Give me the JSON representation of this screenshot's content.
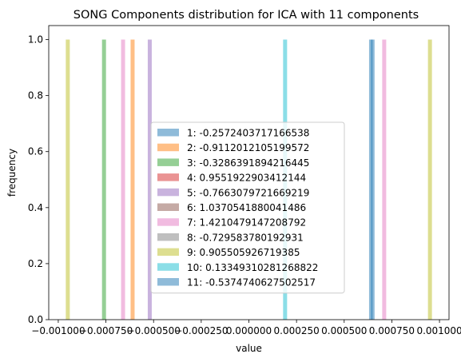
{
  "chart_data": {
    "type": "bar",
    "title": "SONG Components distribution for ICA with 11 components",
    "xlabel": "value",
    "ylabel": "frequency",
    "xlim": [
      -0.00105,
      0.00105
    ],
    "ylim": [
      0,
      1.05
    ],
    "x_ticks": [
      -0.001,
      -0.00075,
      -0.0005,
      -0.00025,
      0.0,
      0.00025,
      0.0005,
      0.00075,
      0.001
    ],
    "x_tick_labels": [
      "−0.001000",
      "−0.000750",
      "−0.000500",
      "−0.000250",
      "0.000000",
      "0.000250",
      "0.000500",
      "0.000750",
      "0.001000"
    ],
    "y_ticks": [
      0.0,
      0.2,
      0.4,
      0.6,
      0.8,
      1.0
    ],
    "y_tick_labels": [
      "0.0",
      "0.2",
      "0.4",
      "0.6",
      "0.8",
      "1.0"
    ],
    "grid": false,
    "legend_position": "lower-center",
    "series": [
      {
        "name": "1: -0.2572403717166538",
        "color": "#1f77b4",
        "x": 0.00064,
        "value": 1.0
      },
      {
        "name": "2: -0.9112012105199572",
        "color": "#ff7f0e",
        "x": -0.00061,
        "value": 1.0
      },
      {
        "name": "3: -0.3286391894216445",
        "color": "#2ca02c",
        "x": -0.00076,
        "value": 1.0
      },
      {
        "name": "4: 0.9551922903412144",
        "color": "#d62728",
        "x": null,
        "value": 0
      },
      {
        "name": "5: -0.7663079721669219",
        "color": "#9467bd",
        "x": -0.00052,
        "value": 1.0
      },
      {
        "name": "6: 1.0370541880041486",
        "color": "#8c564b",
        "x": null,
        "value": 0
      },
      {
        "name": "7: 1.4210479147208792",
        "color": "#e377c2",
        "x": -0.00066,
        "value": 1.0,
        "extra_x": 0.00071
      },
      {
        "name": "8: -0.729583780192931",
        "color": "#7f7f7f",
        "x": null,
        "value": 0
      },
      {
        "name": "9: 0.905505926719385",
        "color": "#bcbd22",
        "x": -0.00095,
        "value": 1.0,
        "extra_x": 0.00095
      },
      {
        "name": "10: 0.13349310281268822",
        "color": "#17becf",
        "x": 0.00019,
        "value": 1.0
      },
      {
        "name": "11: -0.5374740627502517",
        "color": "#1f77b4",
        "x": 0.00065,
        "value": 1.0
      }
    ],
    "bar_alpha": 0.5
  }
}
